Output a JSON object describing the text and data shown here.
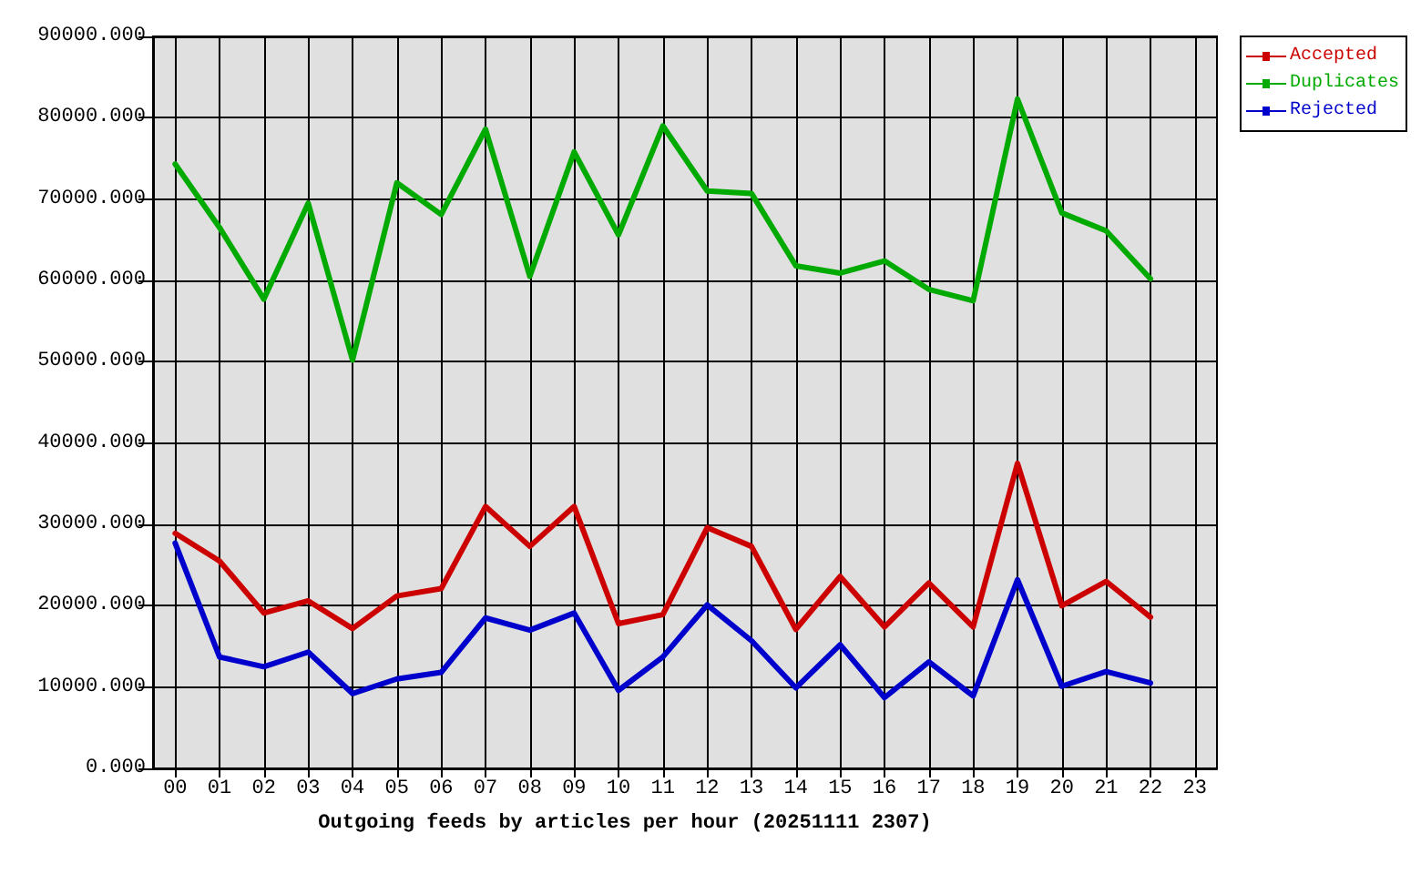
{
  "chart_data": {
    "type": "line",
    "xlabel": "Outgoing feeds by articles per hour (20251111 2307)",
    "categories": [
      "00",
      "01",
      "02",
      "03",
      "04",
      "05",
      "06",
      "07",
      "08",
      "09",
      "10",
      "11",
      "12",
      "13",
      "14",
      "15",
      "16",
      "17",
      "18",
      "19",
      "20",
      "21",
      "22",
      "23"
    ],
    "series": [
      {
        "name": "Accepted",
        "color": "#cc0000",
        "values": [
          28900,
          25500,
          19100,
          20600,
          17200,
          21200,
          22100,
          32200,
          27300,
          32200,
          17800,
          18900,
          29600,
          27300,
          17100,
          23600,
          17400,
          22800,
          17400,
          37500,
          20000,
          23000,
          18600,
          null
        ]
      },
      {
        "name": "Duplicates",
        "color": "#00aa00",
        "values": [
          74300,
          66500,
          57700,
          69500,
          50200,
          72000,
          68100,
          78600,
          60500,
          75800,
          65600,
          79000,
          71000,
          70700,
          61800,
          60900,
          62400,
          58900,
          57500,
          82300,
          68300,
          66100,
          60200,
          null
        ]
      },
      {
        "name": "Rejected",
        "color": "#0000cc",
        "values": [
          27700,
          13700,
          12500,
          14300,
          9200,
          11000,
          11800,
          18500,
          17000,
          19100,
          9600,
          13700,
          20100,
          15700,
          9900,
          15200,
          8700,
          13100,
          8900,
          23200,
          10100,
          11900,
          10500,
          null
        ]
      }
    ],
    "ylim": [
      0,
      90000
    ],
    "yticks": [
      {
        "value": 0,
        "label": "0.000"
      },
      {
        "value": 10000,
        "label": "10000.000"
      },
      {
        "value": 20000,
        "label": "20000.000"
      },
      {
        "value": 30000,
        "label": "30000.000"
      },
      {
        "value": 40000,
        "label": "40000.000"
      },
      {
        "value": 50000,
        "label": "50000.000"
      },
      {
        "value": 60000,
        "label": "60000.000"
      },
      {
        "value": 70000,
        "label": "70000.000"
      },
      {
        "value": 80000,
        "label": "80000.000"
      },
      {
        "value": 90000,
        "label": "90000.000"
      }
    ],
    "grid": true,
    "legend": "top right"
  }
}
